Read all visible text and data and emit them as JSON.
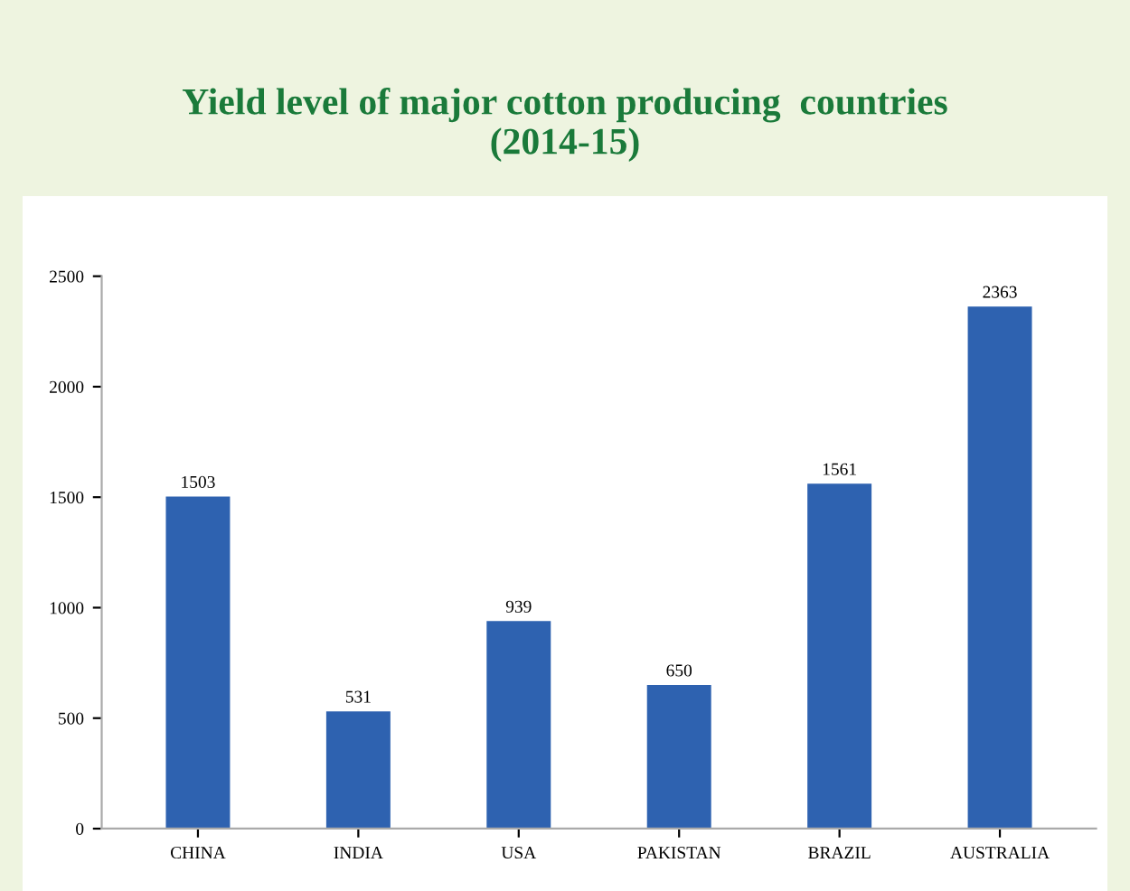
{
  "chart_data": {
    "type": "bar",
    "title": "Yield level of major cotton producing  countries\n(2014-15)",
    "categories": [
      "CHINA",
      "INDIA",
      "USA",
      "PAKISTAN",
      "BRAZIL",
      "AUSTRALIA"
    ],
    "values": [
      1503,
      531,
      939,
      650,
      1561,
      2363
    ],
    "color": "#2e62b0",
    "data_labels": true,
    "ylim": [
      0,
      2500
    ],
    "yticks": [
      0,
      500,
      1000,
      1500,
      2000,
      2500
    ],
    "grid": false,
    "legend": false
  }
}
